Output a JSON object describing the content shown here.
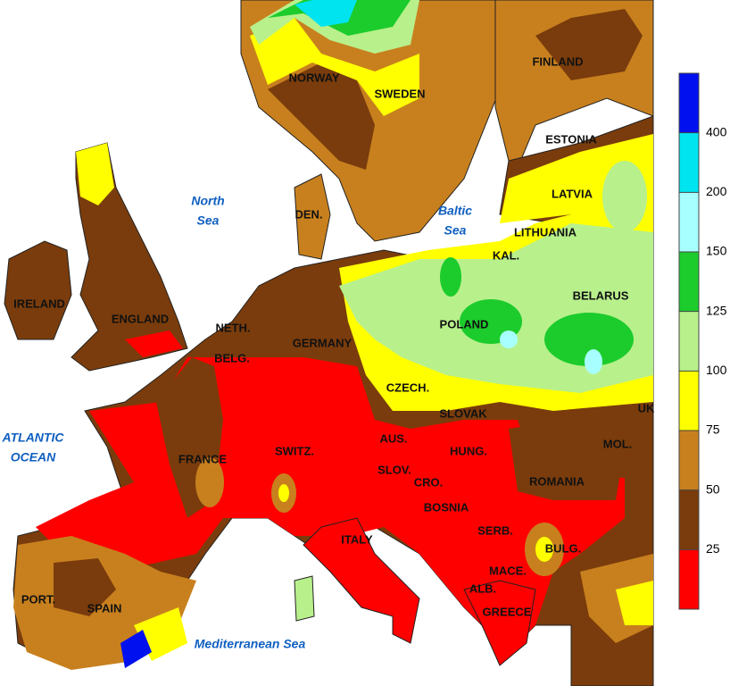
{
  "map": {
    "labels": [
      "NORWAY",
      "SWEDEN",
      "FINLAND",
      "ESTONIA",
      "LATVIA",
      "LITHUANIA",
      "KAL.",
      "BELARUS",
      "POLAND",
      "DEN.",
      "IRELAND",
      "ENGLAND",
      "NETH.",
      "BELG.",
      "GERMANY",
      "CZECH.",
      "SLOVAK",
      "AUS.",
      "HUNG.",
      "MOL.",
      "ROMANIA",
      "UK",
      "FRANCE",
      "SWITZ.",
      "SLOV.",
      "CRO.",
      "BOSNIA",
      "SERB.",
      "BULG.",
      "MACE.",
      "ALB.",
      "GREECE",
      "ITALY",
      "PORT.",
      "SPAIN"
    ],
    "seas": [
      [
        "North",
        "Sea"
      ],
      [
        "Baltic",
        "Sea"
      ],
      [
        "ATLANTIC",
        "OCEAN"
      ],
      [
        "Mediterranean Sea"
      ]
    ]
  },
  "legend": {
    "ticks": [
      25,
      50,
      75,
      100,
      125,
      150,
      200,
      400
    ],
    "colors": [
      "#ff0000",
      "#7a3c0c",
      "#c8801e",
      "#ffff00",
      "#b8f08c",
      "#1ccc2c",
      "#a8ffff",
      "#00e4f0",
      "#0010ee"
    ]
  }
}
